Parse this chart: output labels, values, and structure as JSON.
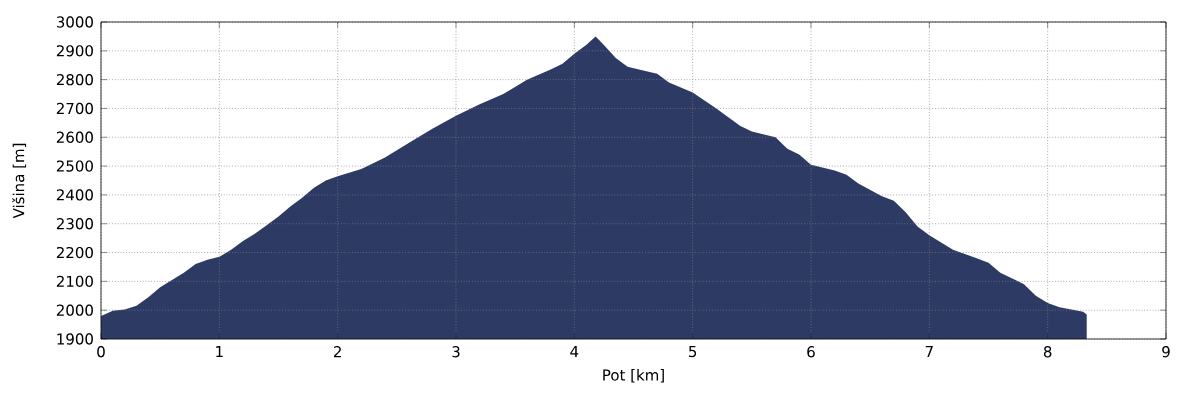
{
  "chart_data": {
    "type": "area",
    "xlabel": "Pot [km]",
    "ylabel": "Višina [m]",
    "color": "#2d3a64",
    "x": [
      0,
      0.1,
      0.2,
      0.3,
      0.4,
      0.5,
      0.6,
      0.7,
      0.8,
      0.9,
      1.0,
      1.1,
      1.2,
      1.3,
      1.4,
      1.5,
      1.6,
      1.7,
      1.8,
      1.9,
      2.0,
      2.2,
      2.4,
      2.6,
      2.8,
      3.0,
      3.2,
      3.4,
      3.6,
      3.8,
      3.9,
      4.0,
      4.1,
      4.18,
      4.25,
      4.35,
      4.45,
      4.6,
      4.7,
      4.8,
      5.0,
      5.2,
      5.4,
      5.5,
      5.7,
      5.8,
      5.9,
      6.0,
      6.2,
      6.3,
      6.4,
      6.6,
      6.7,
      6.8,
      6.9,
      7.0,
      7.2,
      7.4,
      7.5,
      7.6,
      7.8,
      7.9,
      8.0,
      8.1,
      8.3,
      8.33
    ],
    "values": [
      1980,
      1998,
      2002,
      2015,
      2045,
      2080,
      2105,
      2130,
      2160,
      2175,
      2185,
      2210,
      2240,
      2265,
      2295,
      2325,
      2360,
      2390,
      2425,
      2450,
      2465,
      2490,
      2530,
      2580,
      2630,
      2675,
      2715,
      2750,
      2800,
      2835,
      2855,
      2890,
      2920,
      2950,
      2920,
      2875,
      2845,
      2830,
      2820,
      2790,
      2755,
      2700,
      2640,
      2620,
      2600,
      2560,
      2540,
      2505,
      2485,
      2470,
      2440,
      2395,
      2380,
      2340,
      2290,
      2260,
      2210,
      2180,
      2165,
      2130,
      2090,
      2050,
      2025,
      2010,
      1995,
      1985
    ],
    "xlim": [
      0,
      9
    ],
    "xticks": [
      0,
      1,
      2,
      3,
      4,
      5,
      6,
      7,
      8,
      9
    ],
    "ylim": [
      1900,
      3000
    ],
    "yticks": [
      1900,
      2000,
      2100,
      2200,
      2300,
      2400,
      2500,
      2600,
      2700,
      2800,
      2900,
      3000
    ],
    "grid": true
  }
}
